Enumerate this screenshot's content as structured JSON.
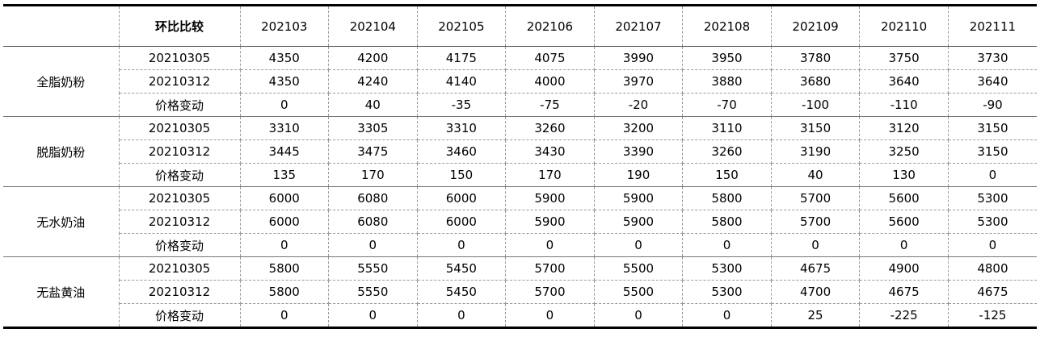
{
  "table": {
    "header": {
      "title": "环比比较",
      "months": [
        "202103",
        "202104",
        "202105",
        "202106",
        "202107",
        "202108",
        "202109",
        "202110",
        "202111"
      ]
    },
    "groups": [
      {
        "name": "全脂奶粉",
        "rows": [
          {
            "label": "20210305",
            "values": [
              4350,
              4200,
              4175,
              4075,
              3990,
              3950,
              3780,
              3750,
              3730
            ]
          },
          {
            "label": "20210312",
            "values": [
              4350,
              4240,
              4140,
              4000,
              3970,
              3880,
              3680,
              3640,
              3640
            ]
          },
          {
            "label": "价格变动",
            "values": [
              0,
              40,
              -35,
              -75,
              -20,
              -70,
              -100,
              -110,
              -90
            ]
          }
        ]
      },
      {
        "name": "脱脂奶粉",
        "rows": [
          {
            "label": "20210305",
            "values": [
              3310,
              3305,
              3310,
              3260,
              3200,
              3110,
              3150,
              3120,
              3150
            ]
          },
          {
            "label": "20210312",
            "values": [
              3445,
              3475,
              3460,
              3430,
              3390,
              3260,
              3190,
              3250,
              3150
            ]
          },
          {
            "label": "价格变动",
            "values": [
              135,
              170,
              150,
              170,
              190,
              150,
              40,
              130,
              0
            ]
          }
        ]
      },
      {
        "name": "无水奶油",
        "rows": [
          {
            "label": "20210305",
            "values": [
              6000,
              6080,
              6000,
              5900,
              5900,
              5800,
              5700,
              5600,
              5300
            ]
          },
          {
            "label": "20210312",
            "values": [
              6000,
              6080,
              6000,
              5900,
              5900,
              5800,
              5700,
              5600,
              5300
            ]
          },
          {
            "label": "价格变动",
            "values": [
              0,
              0,
              0,
              0,
              0,
              0,
              0,
              0,
              0
            ]
          }
        ]
      },
      {
        "name": "无盐黄油",
        "rows": [
          {
            "label": "20210305",
            "values": [
              5800,
              5550,
              5450,
              5700,
              5500,
              5300,
              4675,
              4900,
              4800
            ]
          },
          {
            "label": "20210312",
            "values": [
              5800,
              5550,
              5450,
              5700,
              5500,
              5300,
              4700,
              4675,
              4675
            ]
          },
          {
            "label": "价格变动",
            "values": [
              0,
              0,
              0,
              0,
              0,
              0,
              25,
              -225,
              -125
            ]
          }
        ]
      }
    ]
  }
}
